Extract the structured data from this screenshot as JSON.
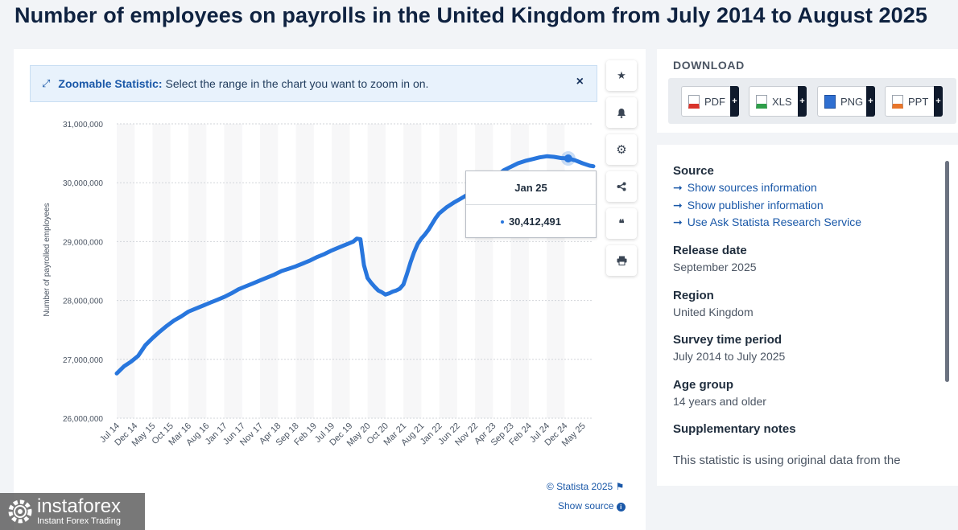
{
  "page_title": "Number of employees on payrolls in the United Kingdom from July 2014 to August 2025",
  "zoom_banner": {
    "bold": "Zoomable Statistic:",
    "text": "Select the range in the chart you want to zoom in on.",
    "close": "×"
  },
  "toolbar": {
    "favorite_icon": "★",
    "notify_icon": "bell-icon",
    "settings_icon": "⚙",
    "share_icon": "share-icon",
    "cite_icon": "❝",
    "print_icon": "print-icon"
  },
  "tooltip": {
    "date": "Jan 25",
    "value": "30,412,491"
  },
  "footer": {
    "copyright": "© Statista 2025",
    "show_source": "Show source"
  },
  "download": {
    "title": "DOWNLOAD",
    "buttons": [
      {
        "label": "PDF",
        "color": "#d9342b"
      },
      {
        "label": "XLS",
        "color": "#2e9e49"
      },
      {
        "label": "PNG",
        "color": "#2f6fd1"
      },
      {
        "label": "PPT",
        "color": "#e8762b"
      }
    ],
    "plus": "+"
  },
  "info": {
    "source_title": "Source",
    "links": [
      "Show sources information",
      "Show publisher information",
      "Use Ask Statista Research Service"
    ],
    "link_arrow": "➞",
    "release_title": "Release date",
    "release_value": "September 2025",
    "region_title": "Region",
    "region_value": "United Kingdom",
    "survey_title": "Survey time period",
    "survey_value": "July 2014 to July 2025",
    "age_title": "Age group",
    "age_value": "14 years and older",
    "supp_title": "Supplementary notes",
    "supp_text": "This statistic is using original data from the"
  },
  "watermark": {
    "brand": "instaforex",
    "sub": "Instant Forex Trading"
  },
  "colors": {
    "line": "#2876dd",
    "accent": "#1a58a8"
  },
  "chart_data": {
    "type": "line",
    "title": "Number of employees on payrolls in the United Kingdom from July 2014 to August 2025",
    "ylabel": "Number of payrolled employees",
    "xlabel": "",
    "ylim": [
      26000000,
      31000000
    ],
    "yticks": [
      26000000,
      27000000,
      28000000,
      29000000,
      30000000,
      31000000
    ],
    "ytick_labels": [
      "26,000,000",
      "27,000,000",
      "28,000,000",
      "29,000,000",
      "30,000,000",
      "31,000,000"
    ],
    "xticks": [
      "Jul 14",
      "Dec 14",
      "May 15",
      "Oct 15",
      "Mar 16",
      "Aug 16",
      "Jan 17",
      "Jun 17",
      "Nov 17",
      "Apr 18",
      "Sep 18",
      "Feb 19",
      "Jul 19",
      "Dec 19",
      "May 20",
      "Oct 20",
      "Mar 21",
      "Aug 21",
      "Jan 22",
      "Jun 22",
      "Nov 22",
      "Apr 23",
      "Sep 23",
      "Feb 24",
      "Jul 24",
      "Dec 24",
      "May 25"
    ],
    "grid": true,
    "legend": "none",
    "series": [
      {
        "x": [
          "Jul 14",
          "Sep 14",
          "Nov 14",
          "Jan 15",
          "Mar 15",
          "May 15",
          "Jul 15",
          "Sep 15",
          "Nov 15",
          "Jan 16",
          "Mar 16",
          "May 16",
          "Jul 16",
          "Sep 16",
          "Nov 16",
          "Jan 17",
          "Mar 17",
          "May 17",
          "Jul 17",
          "Sep 17",
          "Nov 17",
          "Jan 18",
          "Mar 18",
          "May 18",
          "Jul 18",
          "Sep 18",
          "Nov 18",
          "Jan 19",
          "Mar 19",
          "May 19",
          "Jul 19",
          "Sep 19",
          "Nov 19",
          "Jan 20",
          "Feb 20",
          "Mar 20",
          "Apr 20",
          "May 20",
          "Jun 20",
          "Jul 20",
          "Aug 20",
          "Sep 20",
          "Oct 20",
          "Nov 20",
          "Dec 20",
          "Jan 21",
          "Feb 21",
          "Mar 21",
          "Apr 21",
          "May 21",
          "Jun 21",
          "Jul 21",
          "Aug 21",
          "Sep 21",
          "Oct 21",
          "Nov 21",
          "Dec 21",
          "Jan 22",
          "Mar 22",
          "May 22",
          "Jul 22",
          "Sep 22",
          "Nov 22",
          "Jan 23",
          "Mar 23",
          "May 23",
          "Jul 23",
          "Sep 23",
          "Nov 23",
          "Jan 24",
          "Mar 24",
          "May 24",
          "Jul 24",
          "Sep 24",
          "Nov 24",
          "Jan 25",
          "Mar 25",
          "May 25",
          "Jul 25",
          "Aug 25"
        ],
        "values": [
          26760000,
          26880000,
          26960000,
          27060000,
          27240000,
          27360000,
          27470000,
          27570000,
          27660000,
          27730000,
          27810000,
          27860000,
          27910000,
          27960000,
          28010000,
          28060000,
          28120000,
          28190000,
          28240000,
          28290000,
          28340000,
          28390000,
          28440000,
          28500000,
          28540000,
          28580000,
          28630000,
          28680000,
          28740000,
          28790000,
          28850000,
          28900000,
          28950000,
          29000000,
          29050000,
          29040000,
          28600000,
          28380000,
          28300000,
          28230000,
          28170000,
          28140000,
          28100000,
          28120000,
          28150000,
          28170000,
          28200000,
          28270000,
          28450000,
          28650000,
          28820000,
          28960000,
          29050000,
          29120000,
          29200000,
          29300000,
          29400000,
          29480000,
          29580000,
          29660000,
          29730000,
          29800000,
          29870000,
          29940000,
          30010000,
          30110000,
          30210000,
          30270000,
          30330000,
          30370000,
          30400000,
          30430000,
          30450000,
          30440000,
          30420000,
          30412491,
          30380000,
          30330000,
          30290000,
          30280000
        ]
      }
    ]
  }
}
